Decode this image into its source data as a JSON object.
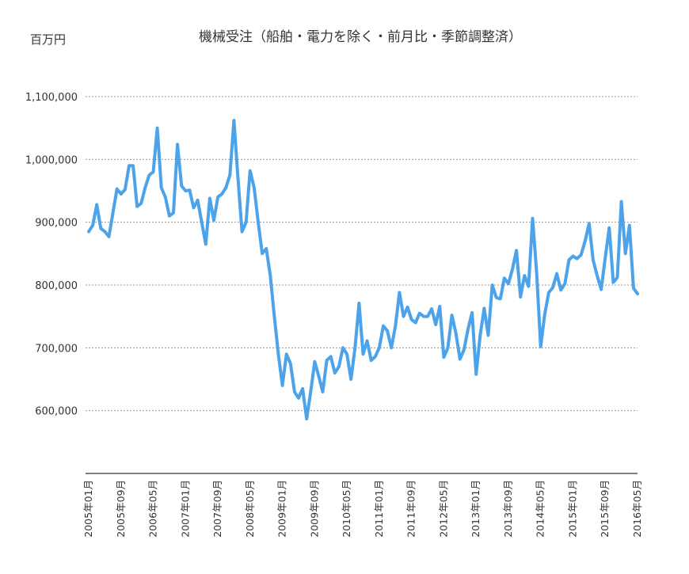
{
  "chart_data": {
    "type": "line",
    "title": "機械受注（船舶・電力を除く・前月比・季節調整済）",
    "ylabel": "百万円",
    "xlabel": "",
    "ylim": [
      500000,
      1100000
    ],
    "yticks": [
      {
        "value": 600000,
        "label": "600,000"
      },
      {
        "value": 700000,
        "label": "700,000"
      },
      {
        "value": 800000,
        "label": "800,000"
      },
      {
        "value": 900000,
        "label": "900,000"
      },
      {
        "value": 1000000,
        "label": "1,000,000"
      },
      {
        "value": 1100000,
        "label": "1,100,000"
      }
    ],
    "xtick_labels": [
      {
        "index": 0,
        "label": "2005年01月"
      },
      {
        "index": 8,
        "label": "2005年09月"
      },
      {
        "index": 16,
        "label": "2006年05月"
      },
      {
        "index": 24,
        "label": "2007年01月"
      },
      {
        "index": 32,
        "label": "2007年09月"
      },
      {
        "index": 40,
        "label": "2008年05月"
      },
      {
        "index": 48,
        "label": "2009年01月"
      },
      {
        "index": 56,
        "label": "2009年09月"
      },
      {
        "index": 64,
        "label": "2010年05月"
      },
      {
        "index": 72,
        "label": "2011年01月"
      },
      {
        "index": 80,
        "label": "2011年09月"
      },
      {
        "index": 88,
        "label": "2012年05月"
      },
      {
        "index": 96,
        "label": "2013年01月"
      },
      {
        "index": 104,
        "label": "2013年09月"
      },
      {
        "index": 112,
        "label": "2014年05月"
      },
      {
        "index": 120,
        "label": "2015年01月"
      },
      {
        "index": 128,
        "label": "2015年09月"
      },
      {
        "index": 136,
        "label": "2016年05月"
      }
    ],
    "grid": true,
    "legend": "none",
    "series": [
      {
        "color": "#4da3ea",
        "values": [
          885000,
          895000,
          928000,
          890000,
          885000,
          877000,
          915000,
          953000,
          945000,
          952000,
          990000,
          990000,
          925000,
          930000,
          955000,
          975000,
          980000,
          1050000,
          955000,
          940000,
          910000,
          915000,
          1024000,
          958000,
          950000,
          951000,
          923000,
          935000,
          900000,
          865000,
          938000,
          903000,
          940000,
          945000,
          955000,
          975000,
          1062000,
          970000,
          885000,
          900000,
          982000,
          955000,
          900000,
          850000,
          858000,
          815000,
          750000,
          690000,
          640000,
          690000,
          675000,
          630000,
          620000,
          635000,
          587000,
          630000,
          678000,
          655000,
          630000,
          680000,
          686000,
          660000,
          670000,
          700000,
          690000,
          650000,
          700000,
          771000,
          690000,
          711000,
          680000,
          686000,
          700000,
          735000,
          727000,
          700000,
          735000,
          788000,
          750000,
          765000,
          745000,
          740000,
          755000,
          750000,
          750000,
          762000,
          737000,
          766000,
          685000,
          700000,
          752000,
          723000,
          682000,
          697000,
          730000,
          756000,
          658000,
          720000,
          763000,
          720000,
          800000,
          780000,
          778000,
          811000,
          802000,
          825000,
          855000,
          781000,
          815000,
          798000,
          906000,
          820000,
          702000,
          753000,
          788000,
          796000,
          818000,
          792000,
          802000,
          840000,
          846000,
          842000,
          848000,
          870000,
          898000,
          840000,
          815000,
          793000,
          843000,
          891000,
          804000,
          812000,
          933000,
          850000,
          895000,
          795000,
          786000
        ]
      }
    ]
  }
}
